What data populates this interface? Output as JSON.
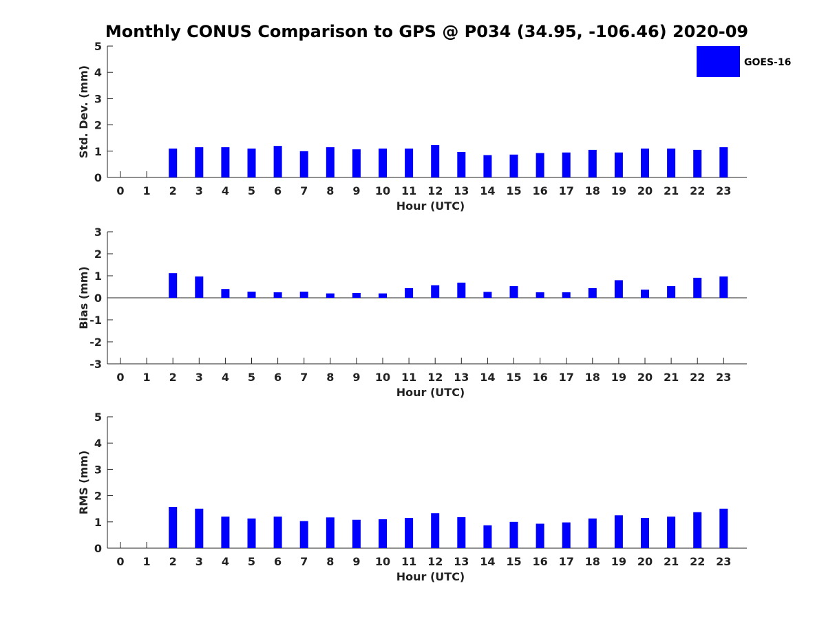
{
  "title": "Monthly CONUS Comparison to GPS @ P034 (34.95, -106.46) 2020-09",
  "legend": {
    "label": "GOES-16",
    "color": "#0000ff",
    "position": "top-right"
  },
  "chart_data": [
    {
      "type": "bar",
      "xlabel": "Hour (UTC)",
      "ylabel": "Std. Dev. (mm)",
      "ylim": [
        0,
        5
      ],
      "yticks": [
        "0",
        "1",
        "2",
        "3",
        "4",
        "5"
      ],
      "categories": [
        "0",
        "1",
        "2",
        "3",
        "4",
        "5",
        "6",
        "7",
        "8",
        "9",
        "10",
        "11",
        "12",
        "13",
        "14",
        "15",
        "16",
        "17",
        "18",
        "19",
        "20",
        "21",
        "22",
        "23"
      ],
      "series": [
        {
          "name": "GOES-16",
          "values": [
            null,
            null,
            1.1,
            1.15,
            1.15,
            1.1,
            1.2,
            1.0,
            1.15,
            1.07,
            1.1,
            1.1,
            1.23,
            0.97,
            0.85,
            0.87,
            0.93,
            0.95,
            1.05,
            0.95,
            1.1,
            1.1,
            1.05,
            1.15
          ]
        }
      ]
    },
    {
      "type": "bar",
      "xlabel": "Hour (UTC)",
      "ylabel": "Bias (mm)",
      "ylim": [
        -3,
        3
      ],
      "yticks": [
        "-3",
        "-2",
        "-1",
        "0",
        "1",
        "2",
        "3"
      ],
      "categories": [
        "0",
        "1",
        "2",
        "3",
        "4",
        "5",
        "6",
        "7",
        "8",
        "9",
        "10",
        "11",
        "12",
        "13",
        "14",
        "15",
        "16",
        "17",
        "18",
        "19",
        "20",
        "21",
        "22",
        "23"
      ],
      "series": [
        {
          "name": "GOES-16",
          "values": [
            null,
            null,
            1.12,
            0.97,
            0.4,
            0.28,
            0.25,
            0.28,
            0.2,
            0.22,
            0.2,
            0.44,
            0.57,
            0.69,
            0.27,
            0.53,
            0.25,
            0.25,
            0.44,
            0.8,
            0.37,
            0.53,
            0.91,
            0.97
          ]
        }
      ]
    },
    {
      "type": "bar",
      "xlabel": "Hour (UTC)",
      "ylabel": "RMS (mm)",
      "ylim": [
        0,
        5
      ],
      "yticks": [
        "0",
        "1",
        "2",
        "3",
        "4",
        "5"
      ],
      "categories": [
        "0",
        "1",
        "2",
        "3",
        "4",
        "5",
        "6",
        "7",
        "8",
        "9",
        "10",
        "11",
        "12",
        "13",
        "14",
        "15",
        "16",
        "17",
        "18",
        "19",
        "20",
        "21",
        "22",
        "23"
      ],
      "series": [
        {
          "name": "GOES-16",
          "values": [
            null,
            null,
            1.57,
            1.5,
            1.2,
            1.13,
            1.2,
            1.03,
            1.17,
            1.08,
            1.1,
            1.15,
            1.33,
            1.18,
            0.87,
            1.0,
            0.93,
            0.98,
            1.13,
            1.25,
            1.15,
            1.2,
            1.37,
            1.5
          ]
        }
      ]
    }
  ]
}
